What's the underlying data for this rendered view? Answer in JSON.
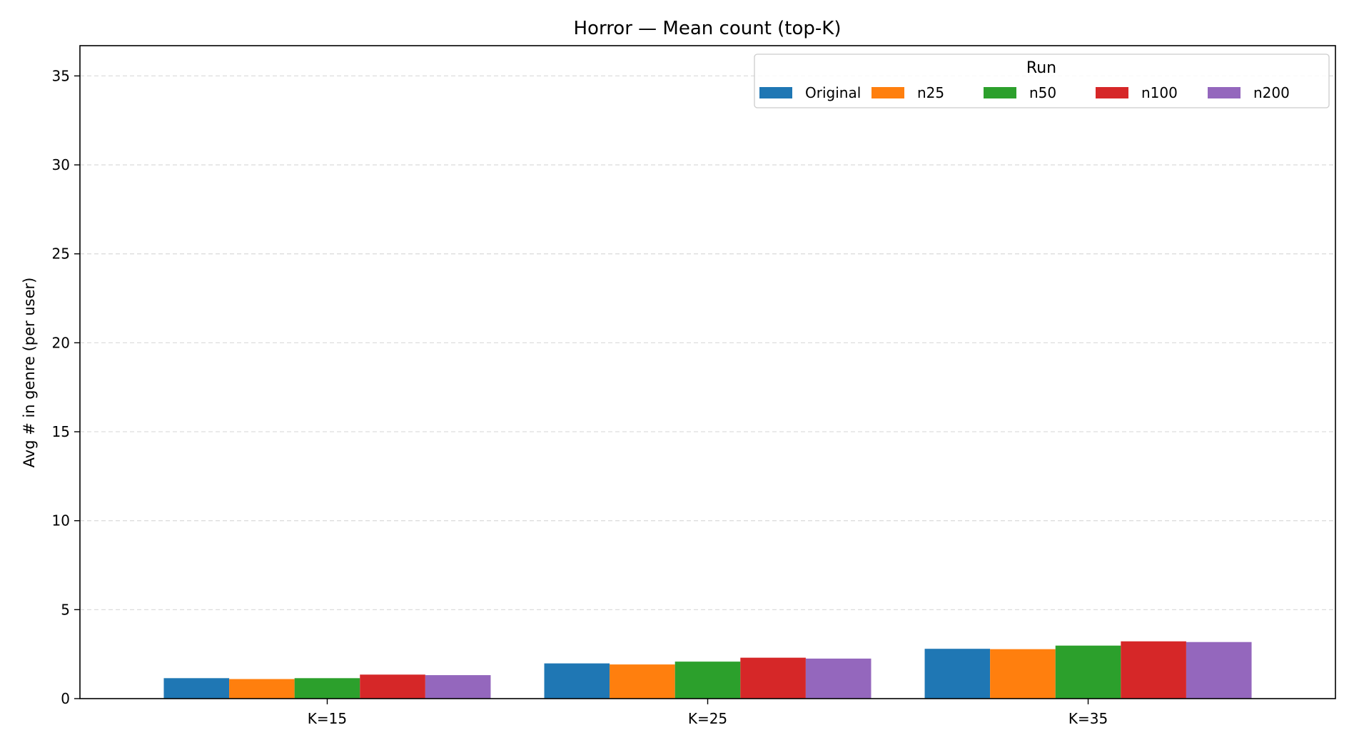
{
  "chart_data": {
    "type": "bar",
    "title": "Horror — Mean count (top-K)",
    "xlabel": "",
    "ylabel": "Avg # in genre (per user)",
    "categories": [
      "K=15",
      "K=25",
      "K=35"
    ],
    "ylim": [
      0,
      36.7
    ],
    "yticks": [
      0,
      5,
      10,
      15,
      20,
      25,
      30,
      35
    ],
    "grid": "y-dashed",
    "legend": {
      "title": "Run",
      "placement": "top-right",
      "columns": 5
    },
    "series": [
      {
        "name": "Original",
        "color": "#1f77b4",
        "values": [
          1.15,
          1.98,
          2.8
        ]
      },
      {
        "name": "n25",
        "color": "#ff7f0e",
        "values": [
          1.1,
          1.92,
          2.78
        ]
      },
      {
        "name": "n50",
        "color": "#2ca02c",
        "values": [
          1.15,
          2.08,
          2.98
        ]
      },
      {
        "name": "n100",
        "color": "#d62728",
        "values": [
          1.35,
          2.3,
          3.22
        ]
      },
      {
        "name": "n200",
        "color": "#9467bd",
        "values": [
          1.32,
          2.25,
          3.18
        ]
      }
    ]
  }
}
